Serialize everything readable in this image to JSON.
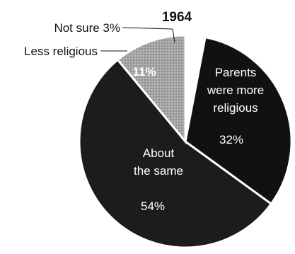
{
  "chart_data": {
    "type": "pie",
    "title": "1964",
    "slices": [
      {
        "label": "Not sure",
        "value": 3,
        "value_label": "3%",
        "color": "#ffffff"
      },
      {
        "label": "Parents were more religious",
        "value": 32,
        "value_label": "32%",
        "color": "#111111"
      },
      {
        "label": "About the same",
        "value": 54,
        "value_label": "54%",
        "color": "#1c1c1c"
      },
      {
        "label": "Less religious",
        "value": 11,
        "value_label": "11%",
        "color": "#9a9a9a"
      }
    ],
    "external_labels": {
      "not_sure": "Not sure 3%",
      "less_religious": "Less religious"
    },
    "inside_labels": {
      "parents_line1": "Parents",
      "parents_line2": "were more",
      "parents_line3": "religious",
      "same_line1": "About",
      "same_line2": "the same"
    },
    "colors": {
      "background": "#ffffff",
      "text_light": "#ffffff",
      "text_dark": "#111111",
      "outline": "#000000"
    }
  }
}
